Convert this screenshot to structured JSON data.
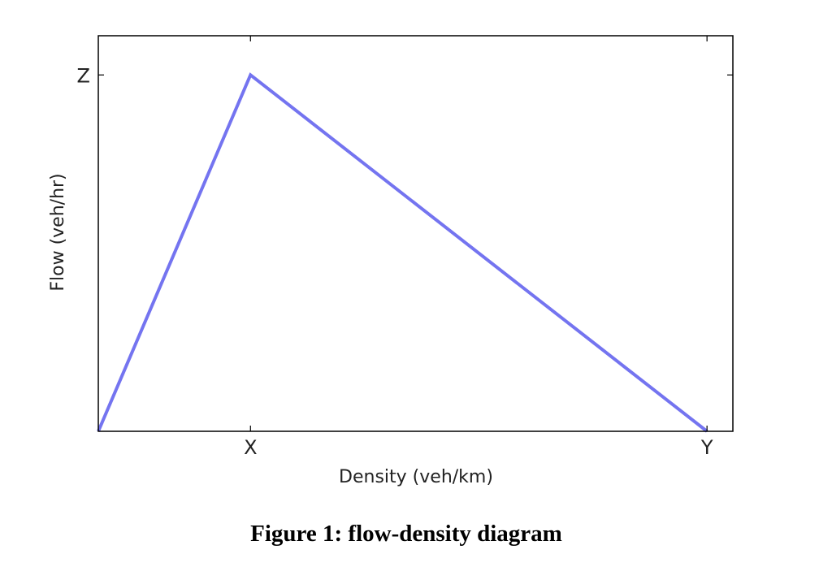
{
  "caption": "Figure 1: flow-density diagram",
  "chart_data": {
    "type": "line",
    "title": "",
    "xlabel": "Density (veh/km)",
    "ylabel": "Flow (veh/hr)",
    "x_ticks": [
      {
        "value": 1,
        "label": "X"
      },
      {
        "value": 4,
        "label": "Y"
      }
    ],
    "y_ticks": [
      {
        "value": 1,
        "label": "Z"
      }
    ],
    "xlim": [
      0,
      4.17
    ],
    "ylim": [
      0,
      1.11
    ],
    "grid": false,
    "series": [
      {
        "color": "#7474f0",
        "x": [
          0,
          1,
          4
        ],
        "y": [
          0,
          1,
          0
        ]
      }
    ]
  }
}
